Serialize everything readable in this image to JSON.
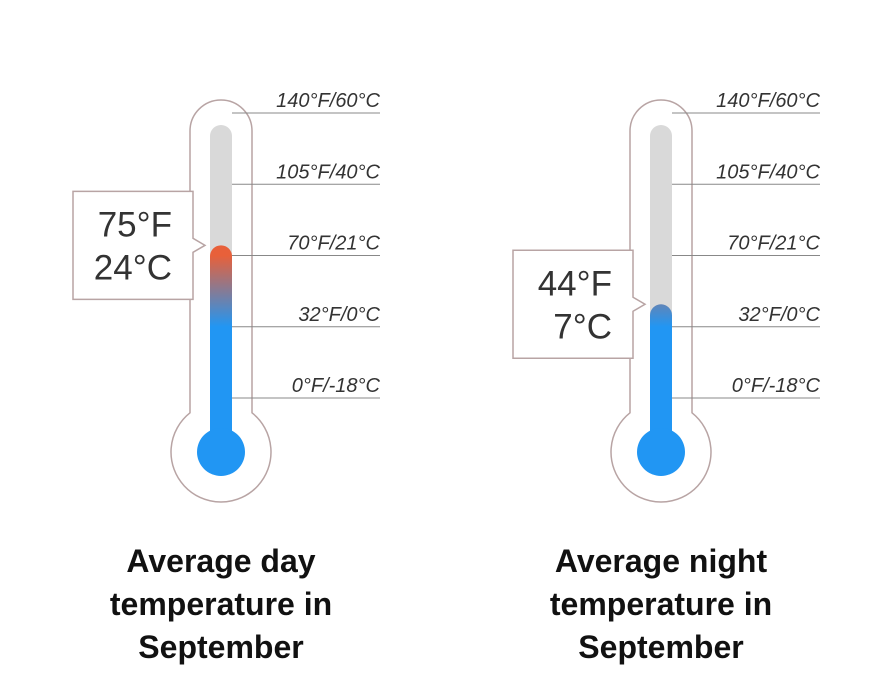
{
  "chart_data": [
    {
      "type": "thermometer",
      "title": "Average day temperature in September",
      "values": [
        75,
        24
      ],
      "value_labels": [
        "75°F",
        "24°C"
      ],
      "colors": [
        "#2196f3",
        "#e8603a"
      ],
      "ylim": [
        0,
        140
      ],
      "yticks": [
        {
          "value": 0,
          "label": "0°F/-18°C"
        },
        {
          "value": 32,
          "label": "32°F/0°C"
        },
        {
          "value": 70,
          "label": "70°F/21°C"
        },
        {
          "value": 105,
          "label": "105°F/40°C"
        },
        {
          "value": 140,
          "label": "140°F/60°C"
        }
      ]
    },
    {
      "type": "thermometer",
      "title": "Average night temperature in September",
      "values": [
        44,
        7
      ],
      "value_labels": [
        "44°F",
        "7°C"
      ],
      "colors": [
        "#2196f3",
        "#e8603a"
      ],
      "ylim": [
        0,
        140
      ],
      "yticks": [
        {
          "value": 0,
          "label": "0°F/-18°C"
        },
        {
          "value": 32,
          "label": "32°F/0°C"
        },
        {
          "value": 70,
          "label": "70°F/21°C"
        },
        {
          "value": 105,
          "label": "105°F/40°C"
        },
        {
          "value": 140,
          "label": "140°F/60°C"
        }
      ]
    }
  ]
}
